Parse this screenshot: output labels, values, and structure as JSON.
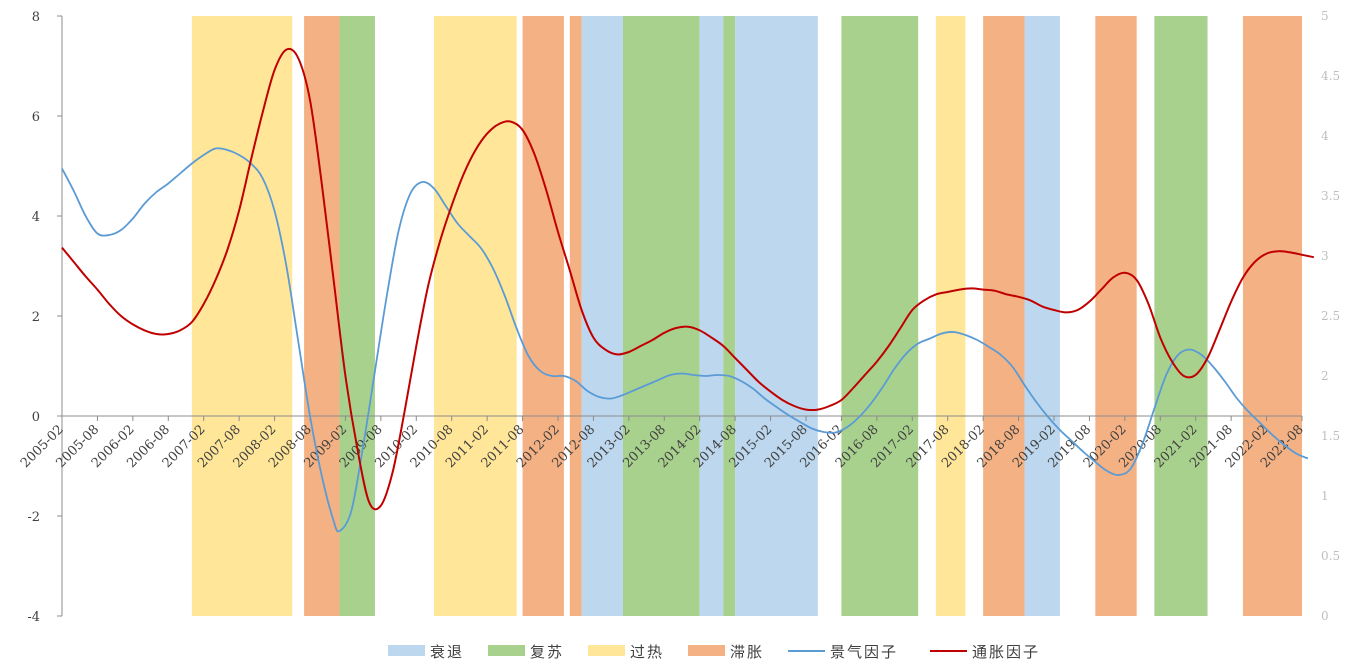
{
  "chart_data": {
    "type": "line",
    "title": "",
    "x_tick_labels": [
      "2005-02",
      "2005-08",
      "2006-02",
      "2006-08",
      "2007-02",
      "2007-08",
      "2008-02",
      "2008-08",
      "2009-02",
      "2009-08",
      "2010-02",
      "2010-08",
      "2011-02",
      "2011-08",
      "2012-02",
      "2012-08",
      "2013-02",
      "2013-08",
      "2014-02",
      "2014-08",
      "2015-02",
      "2015-08",
      "2016-02",
      "2016-08",
      "2017-02",
      "2017-08",
      "2018-02",
      "2018-08",
      "2019-02",
      "2019-08",
      "2020-02",
      "2020-08",
      "2021-02",
      "2021-08",
      "2022-02",
      "2022-08"
    ],
    "x_range": [
      "2005-02",
      "2022-08"
    ],
    "y_left": {
      "ylim": [
        -4,
        8
      ],
      "ticks": [
        8,
        6,
        4,
        2,
        0,
        -2,
        -4
      ]
    },
    "y_right": {
      "ylim": [
        0,
        5
      ],
      "ticks": [
        "5",
        "4.5",
        "4",
        "3.5",
        "3",
        "2.5",
        "2",
        "1.5",
        "1",
        "0.5",
        "0"
      ]
    },
    "legend_position": "bottom",
    "grid": false,
    "regime_legend": [
      {
        "key": "recession",
        "label": "衰退",
        "color": "#BDD7EE"
      },
      {
        "key": "recovery",
        "label": "复苏",
        "color": "#A9D18E"
      },
      {
        "key": "overheat",
        "label": "过热",
        "color": "#FFE699"
      },
      {
        "key": "stagflation",
        "label": "滞胀",
        "color": "#F4B183"
      }
    ],
    "regimes": [
      {
        "start": "2006-12",
        "end": "2008-05",
        "phase": "overheat"
      },
      {
        "start": "2008-07",
        "end": "2009-01",
        "phase": "stagflation"
      },
      {
        "start": "2009-01",
        "end": "2009-07",
        "phase": "recovery"
      },
      {
        "start": "2010-05",
        "end": "2011-07",
        "phase": "overheat"
      },
      {
        "start": "2011-08",
        "end": "2012-03",
        "phase": "stagflation"
      },
      {
        "start": "2012-04",
        "end": "2012-06",
        "phase": "stagflation"
      },
      {
        "start": "2012-06",
        "end": "2013-01",
        "phase": "recession"
      },
      {
        "start": "2013-01",
        "end": "2014-02",
        "phase": "recovery"
      },
      {
        "start": "2014-02",
        "end": "2014-06",
        "phase": "recession"
      },
      {
        "start": "2014-06",
        "end": "2014-08",
        "phase": "recovery"
      },
      {
        "start": "2014-08",
        "end": "2015-10",
        "phase": "recession"
      },
      {
        "start": "2016-02",
        "end": "2017-03",
        "phase": "recovery"
      },
      {
        "start": "2017-06",
        "end": "2017-11",
        "phase": "overheat"
      },
      {
        "start": "2018-02",
        "end": "2018-09",
        "phase": "stagflation"
      },
      {
        "start": "2018-09",
        "end": "2019-03",
        "phase": "recession"
      },
      {
        "start": "2019-09",
        "end": "2020-04",
        "phase": "stagflation"
      },
      {
        "start": "2020-07",
        "end": "2021-04",
        "phase": "recovery"
      },
      {
        "start": "2021-10",
        "end": "2022-11",
        "phase": "stagflation"
      }
    ],
    "series": [
      {
        "name": "景气因子",
        "axis": "left",
        "color": "#5B9BD5",
        "points": [
          [
            "2005-02",
            4.95
          ],
          [
            "2005-04",
            4.5
          ],
          [
            "2005-06",
            4.0
          ],
          [
            "2005-08",
            3.65
          ],
          [
            "2005-10",
            3.62
          ],
          [
            "2005-12",
            3.72
          ],
          [
            "2006-02",
            3.95
          ],
          [
            "2006-04",
            4.25
          ],
          [
            "2006-06",
            4.48
          ],
          [
            "2006-08",
            4.65
          ],
          [
            "2006-10",
            4.85
          ],
          [
            "2006-12",
            5.05
          ],
          [
            "2007-02",
            5.22
          ],
          [
            "2007-04",
            5.35
          ],
          [
            "2007-06",
            5.32
          ],
          [
            "2007-08",
            5.22
          ],
          [
            "2007-10",
            5.05
          ],
          [
            "2007-12",
            4.75
          ],
          [
            "2008-02",
            4.1
          ],
          [
            "2008-04",
            3.0
          ],
          [
            "2008-06",
            1.5
          ],
          [
            "2008-08",
            0.0
          ],
          [
            "2008-10",
            -1.2
          ],
          [
            "2008-12",
            -2.1
          ],
          [
            "2009-01",
            -2.3
          ],
          [
            "2009-03",
            -1.9
          ],
          [
            "2009-05",
            -0.6
          ],
          [
            "2009-07",
            0.9
          ],
          [
            "2009-09",
            2.4
          ],
          [
            "2009-11",
            3.7
          ],
          [
            "2010-01",
            4.45
          ],
          [
            "2010-03",
            4.68
          ],
          [
            "2010-05",
            4.55
          ],
          [
            "2010-07",
            4.2
          ],
          [
            "2010-09",
            3.85
          ],
          [
            "2010-11",
            3.6
          ],
          [
            "2011-01",
            3.35
          ],
          [
            "2011-03",
            2.95
          ],
          [
            "2011-05",
            2.4
          ],
          [
            "2011-07",
            1.75
          ],
          [
            "2011-09",
            1.2
          ],
          [
            "2011-11",
            0.9
          ],
          [
            "2012-01",
            0.8
          ],
          [
            "2012-03",
            0.8
          ],
          [
            "2012-05",
            0.7
          ],
          [
            "2012-07",
            0.5
          ],
          [
            "2012-09",
            0.38
          ],
          [
            "2012-11",
            0.35
          ],
          [
            "2013-01",
            0.42
          ],
          [
            "2013-03",
            0.52
          ],
          [
            "2013-05",
            0.62
          ],
          [
            "2013-07",
            0.72
          ],
          [
            "2013-09",
            0.82
          ],
          [
            "2013-11",
            0.85
          ],
          [
            "2014-01",
            0.82
          ],
          [
            "2014-03",
            0.8
          ],
          [
            "2014-05",
            0.82
          ],
          [
            "2014-07",
            0.8
          ],
          [
            "2014-09",
            0.7
          ],
          [
            "2014-11",
            0.55
          ],
          [
            "2015-01",
            0.35
          ],
          [
            "2015-03",
            0.18
          ],
          [
            "2015-05",
            0.02
          ],
          [
            "2015-07",
            -0.12
          ],
          [
            "2015-09",
            -0.25
          ],
          [
            "2015-11",
            -0.32
          ],
          [
            "2016-01",
            -0.33
          ],
          [
            "2016-03",
            -0.22
          ],
          [
            "2016-05",
            -0.02
          ],
          [
            "2016-07",
            0.25
          ],
          [
            "2016-09",
            0.58
          ],
          [
            "2016-11",
            0.95
          ],
          [
            "2017-01",
            1.25
          ],
          [
            "2017-03",
            1.45
          ],
          [
            "2017-05",
            1.55
          ],
          [
            "2017-07",
            1.65
          ],
          [
            "2017-09",
            1.68
          ],
          [
            "2017-11",
            1.62
          ],
          [
            "2018-01",
            1.52
          ],
          [
            "2018-03",
            1.38
          ],
          [
            "2018-05",
            1.22
          ],
          [
            "2018-07",
            0.98
          ],
          [
            "2018-09",
            0.62
          ],
          [
            "2018-11",
            0.28
          ],
          [
            "2019-01",
            -0.02
          ],
          [
            "2019-03",
            -0.28
          ],
          [
            "2019-05",
            -0.5
          ],
          [
            "2019-07",
            -0.72
          ],
          [
            "2019-09",
            -0.92
          ],
          [
            "2019-11",
            -1.1
          ],
          [
            "2020-01",
            -1.18
          ],
          [
            "2020-03",
            -1.05
          ],
          [
            "2020-05",
            -0.55
          ],
          [
            "2020-07",
            0.15
          ],
          [
            "2020-09",
            0.82
          ],
          [
            "2020-11",
            1.22
          ],
          [
            "2021-01",
            1.33
          ],
          [
            "2021-03",
            1.22
          ],
          [
            "2021-05",
            0.98
          ],
          [
            "2021-07",
            0.68
          ],
          [
            "2021-09",
            0.35
          ],
          [
            "2021-11",
            0.08
          ],
          [
            "2022-01",
            -0.15
          ],
          [
            "2022-03",
            -0.38
          ],
          [
            "2022-05",
            -0.58
          ],
          [
            "2022-07",
            -0.75
          ],
          [
            "2022-09",
            -0.85
          ]
        ]
      },
      {
        "name": "通胀因子",
        "axis": "right",
        "color": "#C00000",
        "points": [
          [
            "2005-02",
            3.07
          ],
          [
            "2005-04",
            2.95
          ],
          [
            "2005-06",
            2.83
          ],
          [
            "2005-08",
            2.72
          ],
          [
            "2005-10",
            2.6
          ],
          [
            "2005-12",
            2.5
          ],
          [
            "2006-02",
            2.43
          ],
          [
            "2006-04",
            2.38
          ],
          [
            "2006-06",
            2.35
          ],
          [
            "2006-08",
            2.35
          ],
          [
            "2006-10",
            2.38
          ],
          [
            "2006-12",
            2.45
          ],
          [
            "2007-02",
            2.6
          ],
          [
            "2007-04",
            2.8
          ],
          [
            "2007-06",
            3.05
          ],
          [
            "2007-08",
            3.38
          ],
          [
            "2007-10",
            3.8
          ],
          [
            "2007-12",
            4.2
          ],
          [
            "2008-02",
            4.55
          ],
          [
            "2008-04",
            4.72
          ],
          [
            "2008-06",
            4.65
          ],
          [
            "2008-08",
            4.3
          ],
          [
            "2008-10",
            3.6
          ],
          [
            "2008-12",
            2.8
          ],
          [
            "2009-02",
            2.0
          ],
          [
            "2009-04",
            1.4
          ],
          [
            "2009-06",
            0.95
          ],
          [
            "2009-08",
            0.92
          ],
          [
            "2009-10",
            1.2
          ],
          [
            "2009-12",
            1.7
          ],
          [
            "2010-02",
            2.25
          ],
          [
            "2010-04",
            2.75
          ],
          [
            "2010-06",
            3.12
          ],
          [
            "2010-08",
            3.42
          ],
          [
            "2010-10",
            3.68
          ],
          [
            "2010-12",
            3.88
          ],
          [
            "2011-02",
            4.02
          ],
          [
            "2011-04",
            4.1
          ],
          [
            "2011-06",
            4.12
          ],
          [
            "2011-08",
            4.05
          ],
          [
            "2011-10",
            3.85
          ],
          [
            "2011-12",
            3.55
          ],
          [
            "2012-02",
            3.2
          ],
          [
            "2012-04",
            2.88
          ],
          [
            "2012-06",
            2.55
          ],
          [
            "2012-08",
            2.32
          ],
          [
            "2012-10",
            2.22
          ],
          [
            "2012-12",
            2.18
          ],
          [
            "2013-02",
            2.2
          ],
          [
            "2013-04",
            2.25
          ],
          [
            "2013-06",
            2.3
          ],
          [
            "2013-08",
            2.36
          ],
          [
            "2013-10",
            2.4
          ],
          [
            "2013-12",
            2.41
          ],
          [
            "2014-02",
            2.38
          ],
          [
            "2014-04",
            2.32
          ],
          [
            "2014-06",
            2.25
          ],
          [
            "2014-08",
            2.15
          ],
          [
            "2014-10",
            2.05
          ],
          [
            "2014-12",
            1.95
          ],
          [
            "2015-02",
            1.87
          ],
          [
            "2015-04",
            1.8
          ],
          [
            "2015-06",
            1.75
          ],
          [
            "2015-08",
            1.72
          ],
          [
            "2015-10",
            1.72
          ],
          [
            "2015-12",
            1.75
          ],
          [
            "2016-02",
            1.8
          ],
          [
            "2016-04",
            1.9
          ],
          [
            "2016-06",
            2.01
          ],
          [
            "2016-08",
            2.12
          ],
          [
            "2016-10",
            2.25
          ],
          [
            "2016-12",
            2.4
          ],
          [
            "2017-02",
            2.55
          ],
          [
            "2017-04",
            2.63
          ],
          [
            "2017-06",
            2.68
          ],
          [
            "2017-08",
            2.7
          ],
          [
            "2017-10",
            2.72
          ],
          [
            "2017-12",
            2.73
          ],
          [
            "2018-02",
            2.72
          ],
          [
            "2018-04",
            2.71
          ],
          [
            "2018-06",
            2.68
          ],
          [
            "2018-08",
            2.66
          ],
          [
            "2018-10",
            2.63
          ],
          [
            "2018-12",
            2.58
          ],
          [
            "2019-02",
            2.55
          ],
          [
            "2019-04",
            2.53
          ],
          [
            "2019-06",
            2.55
          ],
          [
            "2019-08",
            2.62
          ],
          [
            "2019-10",
            2.72
          ],
          [
            "2019-12",
            2.82
          ],
          [
            "2020-02",
            2.86
          ],
          [
            "2020-04",
            2.8
          ],
          [
            "2020-06",
            2.6
          ],
          [
            "2020-08",
            2.32
          ],
          [
            "2020-10",
            2.12
          ],
          [
            "2020-12",
            2.0
          ],
          [
            "2021-02",
            2.01
          ],
          [
            "2021-04",
            2.15
          ],
          [
            "2021-06",
            2.38
          ],
          [
            "2021-08",
            2.62
          ],
          [
            "2021-10",
            2.82
          ],
          [
            "2021-12",
            2.95
          ],
          [
            "2022-02",
            3.02
          ],
          [
            "2022-04",
            3.04
          ],
          [
            "2022-06",
            3.03
          ],
          [
            "2022-08",
            3.01
          ],
          [
            "2022-10",
            2.99
          ]
        ]
      }
    ]
  }
}
